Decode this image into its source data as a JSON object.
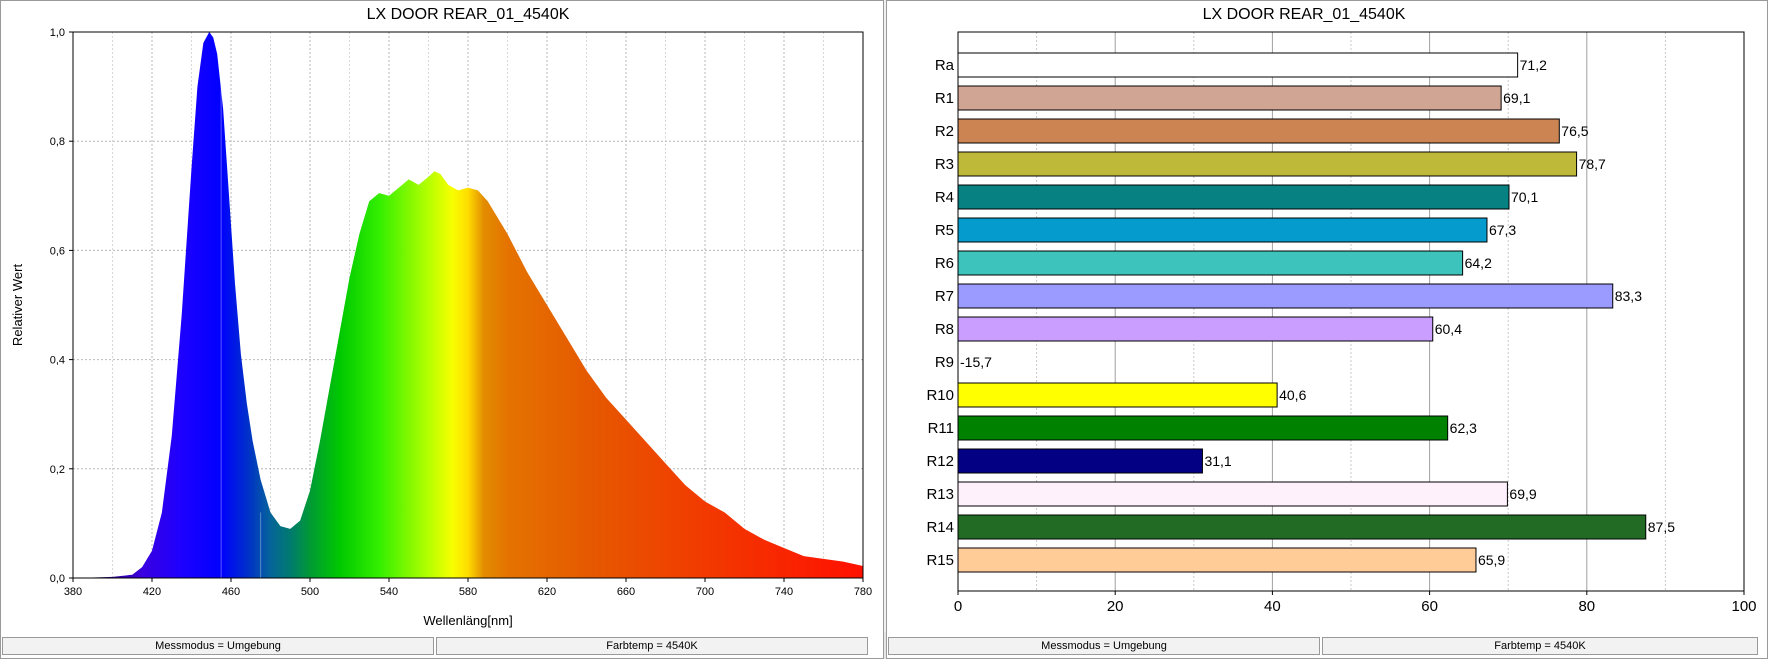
{
  "left_panel": {
    "status_left": "Messmodus = Umgebung",
    "status_right": "Farbtemp = 4540K"
  },
  "right_panel": {
    "status_left": "Messmodus = Umgebung",
    "status_right": "Farbtemp = 4540K"
  },
  "chart_data": [
    {
      "type": "area",
      "title": "LX DOOR REAR_01_4540K",
      "xlabel": "Wellenläng[nm]",
      "ylabel": "Relativer Wert",
      "xlim": [
        380,
        780
      ],
      "ylim": [
        0,
        1.0
      ],
      "x_ticks": [
        "380",
        "420",
        "460",
        "500",
        "540",
        "580",
        "620",
        "660",
        "700",
        "740",
        "780"
      ],
      "y_ticks": [
        "0,0",
        "0,2",
        "0,4",
        "0,6",
        "0,8",
        "1,0"
      ],
      "grid": true,
      "fill": "visible-spectrum colors",
      "series": [
        {
          "x": [
            380,
            390,
            400,
            410,
            415,
            420,
            425,
            430,
            435,
            440,
            443,
            446,
            449,
            451,
            453,
            456,
            459,
            462,
            465,
            468,
            471,
            475,
            480,
            485,
            490,
            495,
            500,
            505,
            510,
            515,
            520,
            525,
            530,
            535,
            540,
            545,
            550,
            555,
            560,
            563,
            566,
            570,
            575,
            580,
            585,
            590,
            595,
            600,
            610,
            620,
            630,
            640,
            650,
            660,
            670,
            680,
            690,
            700,
            710,
            720,
            730,
            740,
            750,
            760,
            770,
            780
          ],
          "y": [
            0.0,
            0.001,
            0.002,
            0.006,
            0.02,
            0.05,
            0.12,
            0.26,
            0.48,
            0.75,
            0.9,
            0.98,
            1.0,
            0.99,
            0.96,
            0.86,
            0.7,
            0.54,
            0.41,
            0.32,
            0.25,
            0.18,
            0.12,
            0.095,
            0.09,
            0.105,
            0.16,
            0.25,
            0.35,
            0.45,
            0.55,
            0.63,
            0.69,
            0.705,
            0.7,
            0.715,
            0.73,
            0.72,
            0.735,
            0.745,
            0.74,
            0.72,
            0.71,
            0.715,
            0.71,
            0.69,
            0.66,
            0.63,
            0.56,
            0.5,
            0.44,
            0.38,
            0.33,
            0.29,
            0.25,
            0.21,
            0.17,
            0.14,
            0.12,
            0.09,
            0.07,
            0.055,
            0.04,
            0.035,
            0.03,
            0.022
          ]
        }
      ]
    },
    {
      "type": "bar",
      "orientation": "horizontal",
      "title": "LX DOOR REAR_01_4540K",
      "xlim": [
        0,
        100
      ],
      "x_ticks": [
        "0",
        "20",
        "40",
        "60",
        "80",
        "100"
      ],
      "grid": true,
      "categories": [
        "Ra",
        "R1",
        "R2",
        "R3",
        "R4",
        "R5",
        "R6",
        "R7",
        "R8",
        "R9",
        "R10",
        "R11",
        "R12",
        "R13",
        "R14",
        "R15"
      ],
      "values": [
        71.2,
        69.1,
        76.5,
        78.7,
        70.1,
        67.3,
        64.2,
        83.3,
        60.4,
        -15.7,
        40.6,
        62.3,
        31.1,
        69.9,
        87.5,
        65.9
      ],
      "value_labels": [
        "71,2",
        "69,1",
        "76,5",
        "78,7",
        "70,1",
        "67,3",
        "64,2",
        "83,3",
        "60,4",
        "-15,7",
        "40,6",
        "62,3",
        "31,1",
        "69,9",
        "87,5",
        "65,9"
      ],
      "colors": [
        "#ffffff",
        "#d1a594",
        "#cc8453",
        "#bfb93a",
        "#088182",
        "#069bcd",
        "#3dc3bb",
        "#9b9aff",
        "#c99eff",
        "#ff0000",
        "#ffff00",
        "#008200",
        "#040084",
        "#fff1fc",
        "#226b25",
        "#ffcb97"
      ]
    }
  ]
}
